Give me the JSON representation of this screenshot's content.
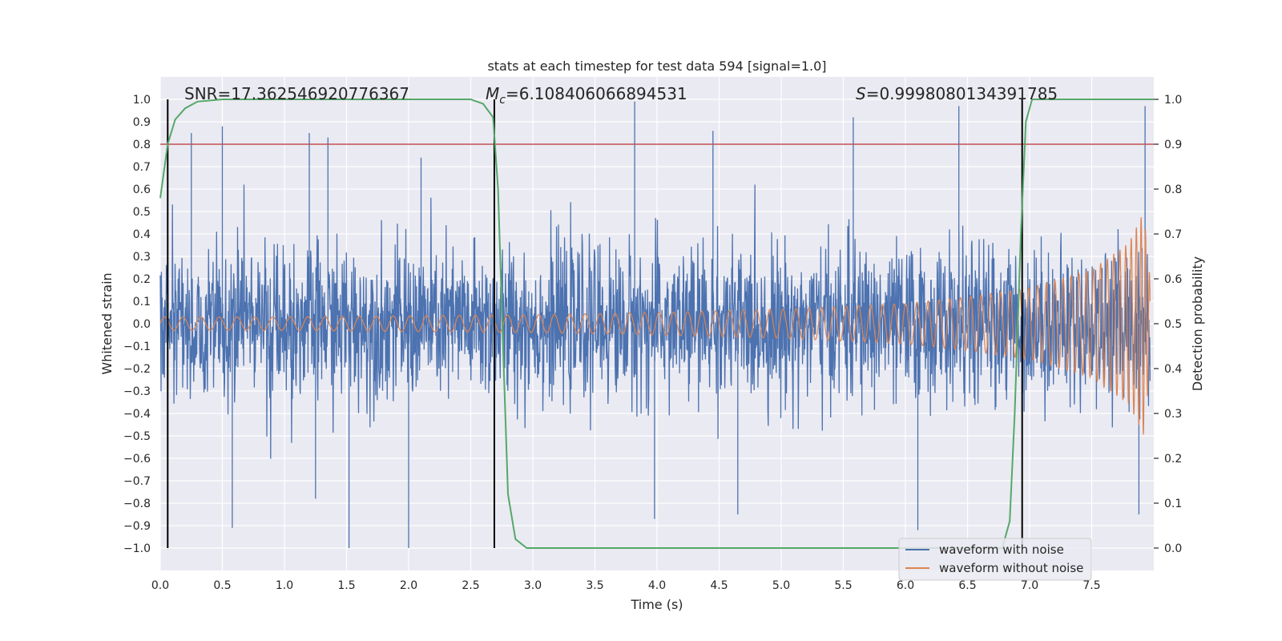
{
  "chart_data": {
    "type": "line",
    "title": "stats at each timestep for test data 594 [signal=1.0]",
    "xlabel": "Time (s)",
    "ylabel": "Whitened strain",
    "y2label": "Detection probability",
    "xlim": [
      0.0,
      8.0
    ],
    "ylim": [
      -1.1,
      1.1
    ],
    "y2lim": [
      -0.05,
      1.05
    ],
    "grid": true,
    "legend_position": "lower-right",
    "x_ticks": [
      "0.0",
      "0.5",
      "1.0",
      "1.5",
      "2.0",
      "2.5",
      "3.0",
      "3.5",
      "4.0",
      "4.5",
      "5.0",
      "5.5",
      "6.0",
      "6.5",
      "7.0",
      "7.5"
    ],
    "y_ticks": [
      "1.0",
      "0.9",
      "0.8",
      "0.7",
      "0.6",
      "0.5",
      "0.4",
      "0.3",
      "0.2",
      "0.1",
      "0.0",
      "−0.1",
      "−0.2",
      "−0.3",
      "−0.4",
      "−0.5",
      "−0.6",
      "−0.7",
      "−0.8",
      "−0.9",
      "−1.0"
    ],
    "y2_ticks": [
      "1.0",
      "0.9",
      "0.8",
      "0.7",
      "0.6",
      "0.5",
      "0.4",
      "0.3",
      "0.2",
      "0.1",
      "0.0"
    ],
    "annotations": {
      "snr": "SNR=17.362546920776367",
      "mc_symbol": "M",
      "mc_subscript": "c",
      "mc_value": "=6.108406066894531",
      "s_symbol": "S",
      "s_value": "=0.9998080134391785"
    },
    "series": [
      {
        "name": "waveform with noise",
        "color": "#4c72b0",
        "style": "dense noisy strain, envelope roughly ±0.35 with spikes reaching ±1.0",
        "peaks": [
          [
            0.25,
            0.85
          ],
          [
            0.5,
            0.88
          ],
          [
            1.2,
            0.85
          ],
          [
            1.35,
            0.83
          ],
          [
            2.1,
            0.74
          ],
          [
            3.82,
            0.99
          ],
          [
            4.45,
            0.86
          ],
          [
            5.58,
            0.92
          ],
          [
            6.43,
            0.97
          ],
          [
            7.93,
            0.97
          ]
        ],
        "troughs": [
          [
            0.58,
            -0.91
          ],
          [
            1.52,
            -1.0
          ],
          [
            2.0,
            -1.0
          ],
          [
            1.25,
            -0.78
          ],
          [
            3.98,
            -0.87
          ],
          [
            4.65,
            -0.85
          ],
          [
            6.1,
            -0.92
          ],
          [
            7.88,
            -0.85
          ]
        ]
      },
      {
        "name": "waveform without noise",
        "color": "#dd8452",
        "style": "chirp, amplitude growing toward merger",
        "amplitude": [
          [
            0.0,
            0.03
          ],
          [
            1.0,
            0.03
          ],
          [
            2.0,
            0.035
          ],
          [
            3.0,
            0.04
          ],
          [
            4.0,
            0.05
          ],
          [
            5.0,
            0.065
          ],
          [
            6.0,
            0.09
          ],
          [
            6.5,
            0.12
          ],
          [
            7.0,
            0.16
          ],
          [
            7.5,
            0.24
          ],
          [
            7.8,
            0.36
          ],
          [
            7.92,
            0.5
          ],
          [
            7.97,
            0.2
          ]
        ]
      },
      {
        "color": "#55a868",
        "axis": "right",
        "points": [
          [
            0.0,
            0.78
          ],
          [
            0.06,
            0.9
          ],
          [
            0.12,
            0.955
          ],
          [
            0.2,
            0.98
          ],
          [
            0.3,
            0.995
          ],
          [
            0.5,
            1.0
          ],
          [
            2.5,
            1.0
          ],
          [
            2.6,
            0.99
          ],
          [
            2.68,
            0.96
          ],
          [
            2.72,
            0.8
          ],
          [
            2.76,
            0.45
          ],
          [
            2.8,
            0.12
          ],
          [
            2.86,
            0.02
          ],
          [
            2.95,
            0.0
          ],
          [
            6.78,
            0.0
          ],
          [
            6.84,
            0.06
          ],
          [
            6.88,
            0.3
          ],
          [
            6.93,
            0.7
          ],
          [
            6.97,
            0.95
          ],
          [
            7.02,
            1.0
          ],
          [
            8.0,
            1.0
          ]
        ]
      },
      {
        "color": "#c44e52",
        "type": "hline",
        "axis": "right",
        "y": 0.9
      }
    ],
    "vlines": [
      0.06,
      2.69,
      6.94
    ],
    "vline_range": [
      -1.0,
      1.0
    ],
    "colors": {
      "plot_bg": "#eaeaf2",
      "grid": "#ffffff",
      "vline": "#000000"
    }
  }
}
